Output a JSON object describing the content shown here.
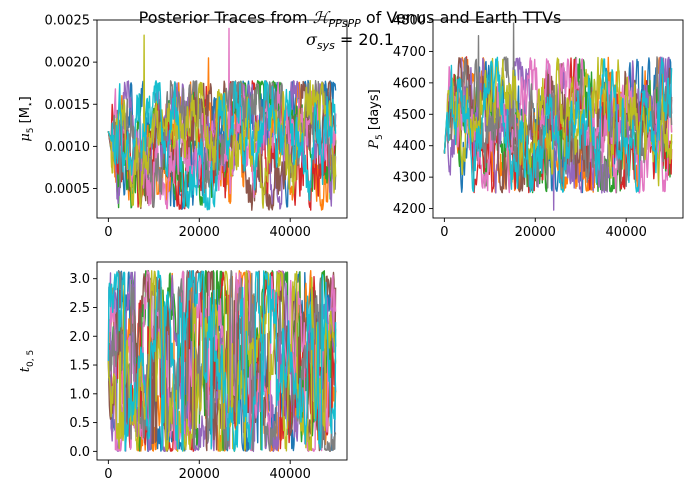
{
  "figure": {
    "title_prefix": "Posterior Traces from ",
    "title_model": "ℋ",
    "title_model_sub": "PPsPP",
    "title_suffix": " of Venus and Earth TTVs",
    "sigma_symbol": "σ",
    "sigma_sub": "sys",
    "sigma_value": " = 20.1"
  },
  "colors": [
    "#1f77b4",
    "#ff7f0e",
    "#2ca02c",
    "#d62728",
    "#9467bd",
    "#8c564b",
    "#e377c2",
    "#7f7f7f",
    "#bcbd22",
    "#17becf"
  ],
  "chart_data": [
    {
      "type": "line",
      "ylabel_main": "μ",
      "ylabel_sub": "5",
      "ylabel_unit": " [M",
      "ylabel_unit_sub": "⋆",
      "ylabel_unit_end": "]",
      "xlim": [
        -2500,
        52500
      ],
      "ylim": [
        0.00015,
        0.0025
      ],
      "xticks": [
        0,
        20000,
        40000
      ],
      "xtick_labels": [
        "0",
        "20000",
        "40000"
      ],
      "yticks": [
        0.0005,
        0.001,
        0.0015,
        0.002,
        0.0025
      ],
      "ytick_labels": [
        "0.0005",
        "0.0010",
        "0.0015",
        "0.0020",
        "0.0025"
      ],
      "x_range": [
        0,
        50000
      ],
      "start_value": 0.00118,
      "band": [
        0.00035,
        0.0017
      ],
      "spikes": [
        [
          7800,
          0.00232,
          8
        ],
        [
          26500,
          0.0024,
          6
        ],
        [
          22000,
          0.00205,
          1
        ]
      ]
    },
    {
      "type": "line",
      "ylabel_main": "P",
      "ylabel_sub": "5",
      "ylabel_unit": " [days]",
      "xlim": [
        -2500,
        52500
      ],
      "ylim": [
        4170,
        4800
      ],
      "xticks": [
        0,
        20000,
        40000
      ],
      "xtick_labels": [
        "0",
        "20000",
        "40000"
      ],
      "yticks": [
        4200,
        4300,
        4400,
        4500,
        4600,
        4700,
        4800
      ],
      "ytick_labels": [
        "4200",
        "4300",
        "4400",
        "4500",
        "4600",
        "4700",
        "4800"
      ],
      "x_range": [
        0,
        50000
      ],
      "start_value": 4375,
      "band": [
        4280,
        4660
      ],
      "spikes": [
        [
          7500,
          4750,
          7
        ],
        [
          15200,
          4790,
          7
        ],
        [
          24000,
          4195,
          4
        ]
      ]
    },
    {
      "type": "line",
      "ylabel_main": "t",
      "ylabel_sub": "0, 5",
      "ylabel_unit": "",
      "xlim": [
        -2500,
        52500
      ],
      "ylim": [
        -0.15,
        3.29
      ],
      "xticks": [
        0,
        20000,
        40000
      ],
      "xtick_labels": [
        "0",
        "20000",
        "40000"
      ],
      "yticks": [
        0.0,
        0.5,
        1.0,
        1.5,
        2.0,
        2.5,
        3.0
      ],
      "ytick_labels": [
        "0.0",
        "0.5",
        "1.0",
        "1.5",
        "2.0",
        "2.5",
        "3.0"
      ],
      "x_range": [
        0,
        50000
      ],
      "start_value": 1.57,
      "band": [
        0.0,
        3.14
      ],
      "spikes": []
    }
  ]
}
